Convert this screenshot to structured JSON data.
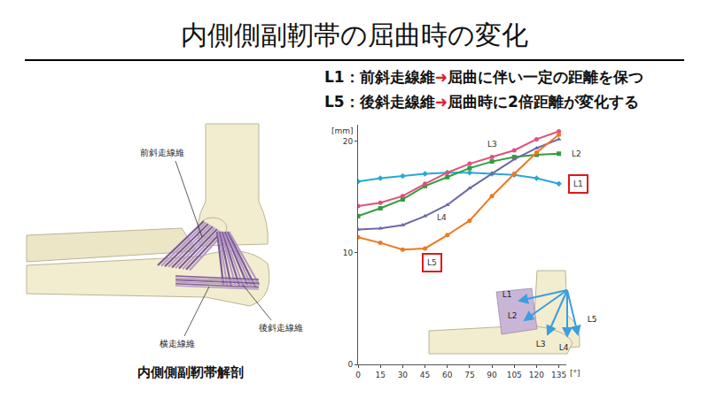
{
  "title": "内側側副靭帯の屈曲時の変化",
  "notes": [
    {
      "parts": [
        "L1：前斜走線維",
        "➜",
        "屈曲に伴い一定の距離を保つ"
      ]
    },
    {
      "parts": [
        "L5：後斜走線維",
        "➜",
        "屈曲時に2倍距離が変化する"
      ]
    }
  ],
  "anatomy": {
    "labels": [
      "前斜走線維",
      "後斜走線維",
      "横走線維"
    ],
    "caption": "内側側副靭帯解剖"
  },
  "inset": {
    "labels": [
      "L1",
      "L2",
      "L3",
      "L4",
      "L5"
    ]
  },
  "chart_data": {
    "type": "line",
    "xlabel": "[°]",
    "ylabel": "[mm]",
    "x": [
      0,
      15,
      30,
      45,
      60,
      75,
      90,
      105,
      120,
      135
    ],
    "xlim": [
      0,
      140
    ],
    "xticks": [
      0,
      15,
      30,
      45,
      60,
      75,
      90,
      105,
      120,
      135
    ],
    "ylim": [
      0,
      21.5
    ],
    "yticks": [
      0,
      10,
      20
    ],
    "grid": false,
    "series": [
      {
        "name": "L1",
        "color": "#2aa6d8",
        "marker": "diamond",
        "values": [
          16.4,
          16.7,
          16.9,
          17.1,
          17.2,
          17.2,
          17.1,
          17.0,
          16.7,
          16.2
        ]
      },
      {
        "name": "L2",
        "color": "#2e9e3a",
        "marker": "square",
        "values": [
          13.3,
          14.0,
          14.8,
          16.0,
          16.8,
          17.6,
          18.2,
          18.6,
          18.8,
          18.9
        ]
      },
      {
        "name": "L3",
        "color": "#e0507a",
        "marker": "circle",
        "values": [
          14.2,
          14.5,
          15.1,
          16.2,
          17.2,
          18.0,
          18.6,
          19.2,
          20.2,
          20.9
        ]
      },
      {
        "name": "L4",
        "color": "#6a6aa8",
        "marker": "triangle-up",
        "values": [
          12.1,
          12.2,
          12.5,
          13.3,
          14.3,
          15.8,
          17.1,
          18.4,
          19.4,
          20.2
        ]
      },
      {
        "name": "L5",
        "color": "#f07820",
        "marker": "circle",
        "values": [
          11.4,
          10.9,
          10.3,
          10.4,
          11.6,
          12.9,
          15.1,
          17.1,
          19.0,
          20.6
        ]
      }
    ]
  }
}
